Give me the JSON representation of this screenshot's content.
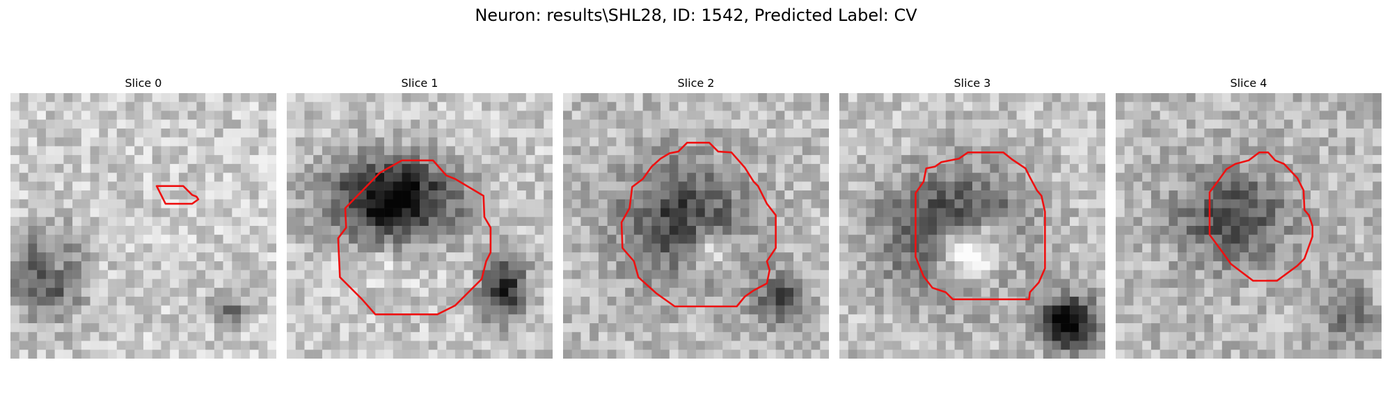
{
  "figure": {
    "title": "Neuron: results\\SHL28, ID: 1542, Predicted Label: CV"
  },
  "colors": {
    "contour": "#ee1111",
    "background": "#ffffff"
  },
  "colormap": "gray",
  "panels": [
    {
      "title": "Slice 0",
      "features": [
        {
          "kind": "dark-blob",
          "cx": 4.2,
          "cy": 20.5,
          "rx": 4.6,
          "ry": 5.6,
          "strength": 0.55
        },
        {
          "kind": "light-blob",
          "cx": 4.8,
          "cy": 19.0,
          "rx": 2.4,
          "ry": 2.8,
          "strength": 0.35
        },
        {
          "kind": "dark-blob",
          "cx": 24.5,
          "cy": 24.5,
          "rx": 2.2,
          "ry": 2.2,
          "strength": 0.4
        }
      ]
    },
    {
      "title": "Slice 1",
      "features": [
        {
          "kind": "dark-blob",
          "cx": 12.0,
          "cy": 12.0,
          "rx": 8.5,
          "ry": 5.5,
          "strength": 0.8
        },
        {
          "kind": "light-blob",
          "cx": 10.5,
          "cy": 20.0,
          "rx": 7.0,
          "ry": 2.6,
          "strength": 0.3
        },
        {
          "kind": "dark-blob",
          "cx": 24.5,
          "cy": 22.0,
          "rx": 3.0,
          "ry": 4.5,
          "strength": 0.65
        }
      ]
    },
    {
      "title": "Slice 2",
      "features": [
        {
          "kind": "dark-blob",
          "cx": 13.5,
          "cy": 14.5,
          "rx": 8.5,
          "ry": 8.0,
          "strength": 0.5
        },
        {
          "kind": "light-blob",
          "cx": 17.0,
          "cy": 18.0,
          "rx": 3.6,
          "ry": 3.2,
          "strength": 0.6
        },
        {
          "kind": "dark-blob",
          "cx": 24.5,
          "cy": 23.5,
          "rx": 3.4,
          "ry": 3.4,
          "strength": 0.45
        }
      ]
    },
    {
      "title": "Slice 3",
      "features": [
        {
          "kind": "dark-blob",
          "cx": 13.0,
          "cy": 16.0,
          "rx": 9.0,
          "ry": 8.0,
          "strength": 0.65
        },
        {
          "kind": "light-blob",
          "cx": 15.0,
          "cy": 18.0,
          "rx": 5.5,
          "ry": 4.5,
          "strength": 0.95
        },
        {
          "kind": "dark-blob",
          "cx": 26.0,
          "cy": 26.0,
          "rx": 4.0,
          "ry": 3.6,
          "strength": 0.8
        }
      ]
    },
    {
      "title": "Slice 4",
      "features": [
        {
          "kind": "dark-blob",
          "cx": 13.0,
          "cy": 14.0,
          "rx": 7.0,
          "ry": 6.0,
          "strength": 0.45
        },
        {
          "kind": "dark-blob",
          "cx": 26.0,
          "cy": 25.0,
          "rx": 3.2,
          "ry": 4.0,
          "strength": 0.3
        }
      ]
    }
  ]
}
